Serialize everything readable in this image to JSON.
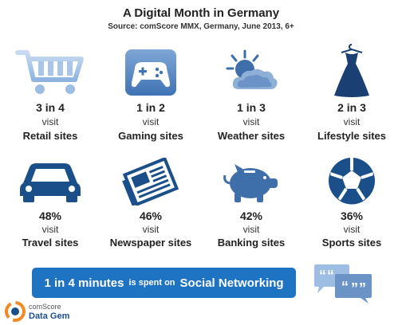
{
  "header": {
    "title": "A Digital Month in Germany",
    "source": "Source: comScore MMX, Germany, June 2013, 6+"
  },
  "categories": [
    {
      "stat": "3 in 4",
      "visit": "visit",
      "label": "Retail sites",
      "icon": "shopping-cart-icon"
    },
    {
      "stat": "1 in 2",
      "visit": "visit",
      "label": "Gaming sites",
      "icon": "gamepad-icon"
    },
    {
      "stat": "1 in 3",
      "visit": "visit",
      "label": "Weather sites",
      "icon": "weather-icon"
    },
    {
      "stat": "2 in 3",
      "visit": "visit",
      "label": "Lifestyle sites",
      "icon": "dress-icon"
    },
    {
      "stat": "48%",
      "visit": "visit",
      "label": "Travel sites",
      "icon": "car-icon"
    },
    {
      "stat": "46%",
      "visit": "visit",
      "label": "Newspaper sites",
      "icon": "newspaper-icon"
    },
    {
      "stat": "42%",
      "visit": "visit",
      "label": "Banking sites",
      "icon": "piggy-bank-icon"
    },
    {
      "stat": "36%",
      "visit": "visit",
      "label": "Sports sites",
      "icon": "soccer-ball-icon"
    }
  ],
  "banner": {
    "highlight": "1 in 4 minutes",
    "middle": "is spent on",
    "topic": "Social Networking",
    "icon": "speech-bubbles-icon"
  },
  "logo": {
    "brand": "comScore",
    "product": "Data Gem"
  },
  "colors": {
    "accent_dark": "#1a4f8a",
    "accent_light": "#7aaee8",
    "banner": "#1f73c3"
  }
}
